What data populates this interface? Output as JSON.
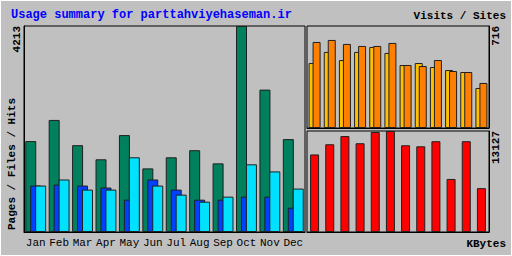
{
  "chart_data": [
    {
      "type": "bar",
      "title": "Usage summary for parttahviyehaseman.ir",
      "separator": "/",
      "categories": [
        "Jan",
        "Feb",
        "Mar",
        "Apr",
        "May",
        "Jun",
        "Jul",
        "Aug",
        "Sep",
        "Oct",
        "Nov",
        "Dec"
      ],
      "series": [
        {
          "name": "Pages",
          "color": "#0040ff",
          "values": [
            950,
            970,
            950,
            909,
            661,
            1074,
            867,
            661,
            661,
            723,
            723,
            496
          ]
        },
        {
          "name": "Files",
          "color": "#00e0ff",
          "values": [
            950,
            1074,
            867,
            867,
            1528,
            950,
            764,
            620,
            723,
            1384,
            1239,
            888
          ]
        },
        {
          "name": "Hits",
          "color": "#00805c",
          "values": [
            1859,
            2292,
            1776,
            1487,
            1982,
            1301,
            1528,
            1673,
            1404,
            4213,
            2912,
            1900
          ]
        }
      ],
      "ylim": [
        0,
        4213
      ],
      "yticks": [
        4213
      ],
      "grid": false
    },
    {
      "type": "bar",
      "separator": "/",
      "categories": [
        "Jan",
        "Feb",
        "Mar",
        "Apr",
        "May",
        "Jun",
        "Jul",
        "Aug",
        "Sep",
        "Oct",
        "Nov",
        "Dec"
      ],
      "series": [
        {
          "name": "Visits",
          "color": "#ffc000",
          "values": [
            456,
            534,
            477,
            534,
            569,
            527,
            442,
            456,
            428,
            407,
            393,
            281
          ]
        },
        {
          "name": "Sites",
          "color": "#ff8000",
          "values": [
            604,
            618,
            590,
            576,
            576,
            597,
            442,
            435,
            477,
            400,
            393,
            316
          ]
        }
      ],
      "ylim": [
        0,
        716
      ],
      "yticks": [
        716
      ],
      "grid": false,
      "tick_labels": "y"
    },
    {
      "type": "bar",
      "categories": [
        "Jan",
        "Feb",
        "Mar",
        "Apr",
        "May",
        "Jun",
        "Jul",
        "Aug",
        "Sep",
        "Oct",
        "Nov",
        "Dec"
      ],
      "series": [
        {
          "name": "KBytes",
          "color": "#ff0000",
          "values": [
            10078,
            11404,
            12465,
            11536,
            12995,
            13127,
            11271,
            11138,
            11801,
            6895,
            11801,
            5702
          ]
        }
      ],
      "ylim": [
        0,
        13127
      ],
      "yticks": [
        13127
      ],
      "grid": false,
      "tick_labels": "y"
    }
  ]
}
